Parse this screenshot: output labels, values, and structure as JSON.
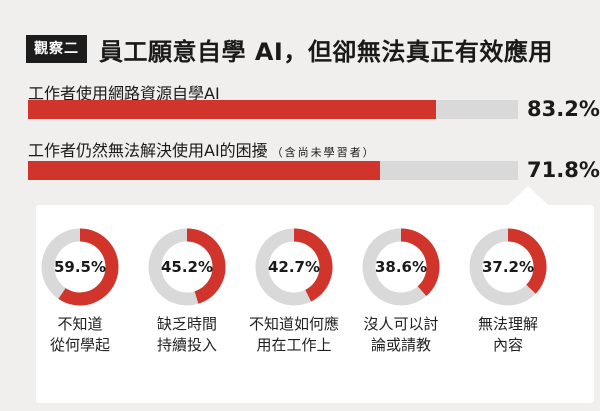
{
  "header": {
    "tag": "觀察二",
    "title": "員工願意自學 AI，但卻無法真正有效應用"
  },
  "colors": {
    "accent": "#d1342a",
    "track": "#d9d9d9",
    "panel": "#ffffff",
    "background": "#f0efed"
  },
  "chart_data": [
    {
      "type": "bar",
      "orientation": "horizontal",
      "categories": [
        "工作者使用網路資源自學AI",
        "工作者仍然無法解決使用AI的困擾"
      ],
      "category_notes": [
        "",
        "（含尚未學習者）"
      ],
      "values": [
        83.2,
        71.8
      ],
      "value_labels": [
        "83.2%",
        "71.8%"
      ],
      "xlim": [
        0,
        100
      ]
    },
    {
      "type": "pie",
      "style": "donut",
      "items": [
        {
          "label_lines": [
            "不知道",
            "從何學起"
          ],
          "value": 59.5,
          "value_label": "59.5%"
        },
        {
          "label_lines": [
            "缺乏時間",
            "持續投入"
          ],
          "value": 45.2,
          "value_label": "45.2%"
        },
        {
          "label_lines": [
            "不知道如何應",
            "用在工作上"
          ],
          "value": 42.7,
          "value_label": "42.7%"
        },
        {
          "label_lines": [
            "沒人可以討",
            "論或請教"
          ],
          "value": 38.6,
          "value_label": "38.6%"
        },
        {
          "label_lines": [
            "無法理解",
            "內容"
          ],
          "value": 37.2,
          "value_label": "37.2%"
        }
      ]
    }
  ]
}
